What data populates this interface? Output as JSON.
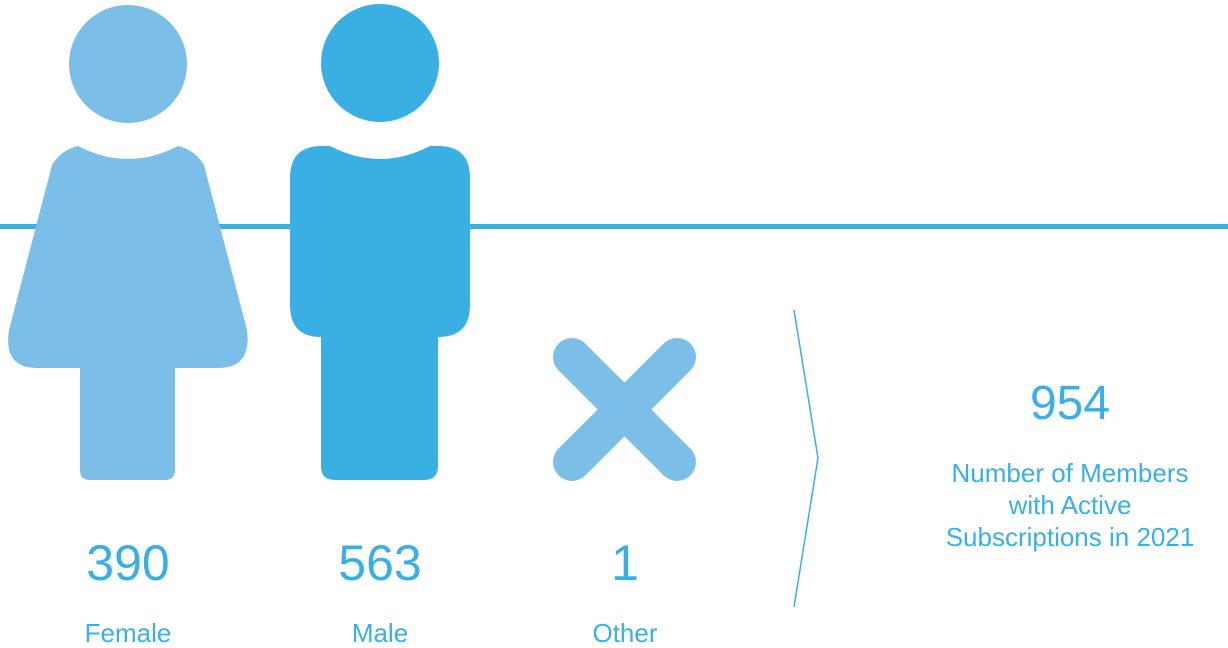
{
  "colors": {
    "female": "#7bbfe9",
    "male": "#3aafe3",
    "other": "#7bbfe9",
    "text": "#3aafe3",
    "rule": "#3aafe3"
  },
  "stats": [
    {
      "value": "390",
      "label": "Female",
      "icon": "female-figure-icon"
    },
    {
      "value": "563",
      "label": "Male",
      "icon": "male-figure-icon"
    },
    {
      "value": "1",
      "label": "Other",
      "icon": "cross-icon"
    }
  ],
  "total": {
    "value": "954",
    "caption_lines": [
      "Number of Members",
      "with Active",
      "Subscriptions in 2021"
    ]
  }
}
